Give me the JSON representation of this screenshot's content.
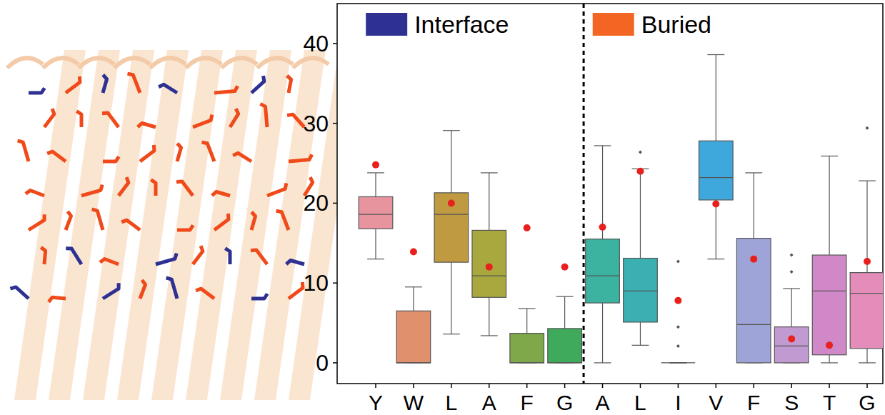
{
  "chart_data": {
    "type": "box",
    "ylim": [
      -2.6,
      45
    ],
    "yticks": [
      0,
      10,
      20,
      30,
      40
    ],
    "legend": "top",
    "series": [
      {
        "name": "Interface",
        "color": "#2e3192",
        "categories": [
          "Y",
          "W",
          "L",
          "A",
          "F",
          "G"
        ],
        "colors": [
          "#e8949f",
          "#e0906a",
          "#bf9a40",
          "#a8a83e",
          "#7ea84a",
          "#3faa5c"
        ],
        "boxes": [
          {
            "whislo": 13,
            "q1": 16.8,
            "med": 18.6,
            "q3": 20.8,
            "whishi": 23.8,
            "fliers": []
          },
          {
            "whislo": 0,
            "q1": 0,
            "med": 0,
            "q3": 6.5,
            "whishi": 9.5,
            "fliers": []
          },
          {
            "whislo": 3.6,
            "q1": 12.6,
            "med": 18.6,
            "q3": 21.3,
            "whishi": 29.1,
            "fliers": []
          },
          {
            "whislo": 3.4,
            "q1": 8.2,
            "med": 10.9,
            "q3": 16.6,
            "whishi": 23.8,
            "fliers": []
          },
          {
            "whislo": 0,
            "q1": 0,
            "med": 0,
            "q3": 3.7,
            "whishi": 6.8,
            "fliers": []
          },
          {
            "whislo": 0,
            "q1": 0,
            "med": 0,
            "q3": 4.3,
            "whishi": 8.3,
            "fliers": []
          }
        ],
        "reference_values": [
          24.8,
          13.9,
          20,
          12,
          16.9,
          12
        ]
      },
      {
        "name": "Buried",
        "color": "#f26522",
        "categories": [
          "A",
          "L",
          "I",
          "V",
          "F",
          "S",
          "T",
          "G"
        ],
        "colors": [
          "#3cb3a0",
          "#3bb0b2",
          "#3aaec4",
          "#3ea8dc",
          "#9ea4d8",
          "#c19ad2",
          "#d088c8",
          "#e48cba"
        ],
        "boxes": [
          {
            "whislo": 0,
            "q1": 7.5,
            "med": 10.9,
            "q3": 15.5,
            "whishi": 27.2,
            "fliers": []
          },
          {
            "whislo": 2.2,
            "q1": 5.1,
            "med": 9,
            "q3": 13.1,
            "whishi": 24.3,
            "fliers": [
              26.4
            ]
          },
          {
            "whislo": 0,
            "q1": 0,
            "med": 0,
            "q3": 0,
            "whishi": 0,
            "fliers": [
              12.7,
              4.5,
              2.1
            ]
          },
          {
            "whislo": 13,
            "q1": 20.4,
            "med": 23.2,
            "q3": 27.8,
            "whishi": 38.6,
            "fliers": []
          },
          {
            "whislo": 0,
            "q1": 0,
            "med": 4.8,
            "q3": 15.6,
            "whishi": 23.8,
            "fliers": []
          },
          {
            "whislo": 0,
            "q1": 0,
            "med": 2.1,
            "q3": 4.5,
            "whishi": 9.3,
            "fliers": [
              11.4,
              13.5
            ]
          },
          {
            "whislo": 0,
            "q1": 1,
            "med": 9,
            "q3": 13.5,
            "whishi": 25.9,
            "fliers": []
          },
          {
            "whislo": 0,
            "q1": 1.8,
            "med": 8.7,
            "q3": 11.3,
            "whishi": 22.8,
            "fliers": [
              29.4
            ]
          }
        ],
        "reference_values": [
          17,
          24,
          7.8,
          19.9,
          13,
          3,
          2.2,
          12.7
        ]
      }
    ]
  }
}
